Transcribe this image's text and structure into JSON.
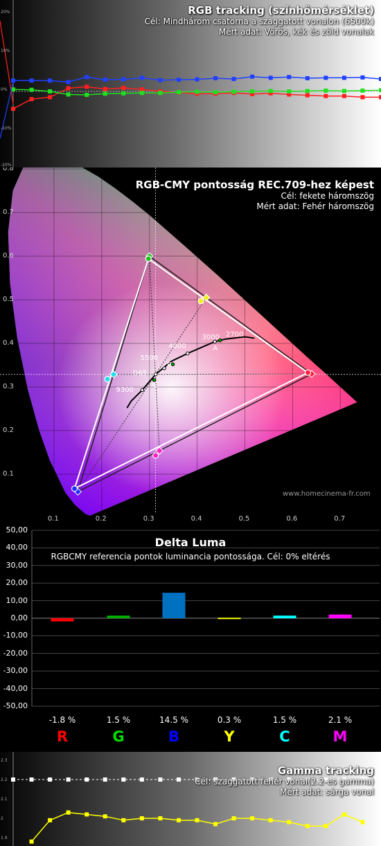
{
  "rgb_tracking": {
    "title": "RGB tracking (színhőmérséklet)",
    "target": "Cél: Mindhárom csatorna a szaggatott vonalon (6500k)",
    "measured": "Mért adat: Vörös, kék és zöld vonalak",
    "y_labels": [
      "20%",
      "10%",
      "0%",
      "-10%",
      "-20%"
    ],
    "colors": {
      "red": "#ff2020",
      "green": "#20e020",
      "blue": "#2040ff"
    }
  },
  "cie": {
    "title": "RGB-CMY pontosság REC.709-hez képest",
    "target": "Cél: fekete háromszög",
    "measured": "Mért adat: Fehér háromszög",
    "x_ticks": [
      "0.1",
      "0.2",
      "0.3",
      "0.4",
      "0.5",
      "0.6",
      "0.7"
    ],
    "y_ticks": [
      "0.8",
      "0.7",
      "0.6",
      "0.5",
      "0.4",
      "0.3",
      "0.2",
      "0.1"
    ],
    "cct_labels": [
      "2700",
      "3000",
      "4000",
      "5500",
      "D65",
      "9300"
    ],
    "illuminant_labels": [
      "A",
      "B",
      "C"
    ],
    "watermark": "www.homecinema-fr.com"
  },
  "delta_luma": {
    "title": "Delta Luma",
    "subtitle": "RGBCMY referencia pontok luminancia pontossága. Cél: 0% eltérés",
    "y_ticks": [
      "50,00",
      "40,00",
      "30,00",
      "20,00",
      "10,00",
      "0,00",
      "-10,00",
      "-20,00",
      "-30,00",
      "-40,00",
      "-50,00"
    ]
  },
  "gamma_tracking": {
    "title": "Gamma tracking",
    "target": "Cél: szaggatott fehér vonal(2.2-es gamma)",
    "measured": "Mért adat: sárga vonal",
    "y_labels": [
      "2.3",
      "2.2",
      "2.1",
      "2",
      "1.9"
    ]
  },
  "chart_data": [
    {
      "type": "line",
      "title": "RGB tracking (színhőmérséklet)",
      "x": [
        0,
        5,
        10,
        15,
        20,
        25,
        30,
        35,
        40,
        45,
        50,
        55,
        60,
        65,
        70,
        75,
        80,
        85,
        90,
        95,
        100
      ],
      "ylim": [
        -20,
        20
      ],
      "target": 0,
      "series": [
        {
          "name": "Vörös",
          "color": "#ff2020",
          "values": [
            -4.5,
            -2.0,
            -1.5,
            0.8,
            1.2,
            0.6,
            0.9,
            0.5,
            0.0,
            -0.3,
            -0.6,
            -0.6,
            -0.4,
            -0.7,
            -0.5,
            -0.8,
            -1.0,
            -1.2,
            -1.2,
            -1.5,
            -1.5
          ]
        },
        {
          "name": "Zöld",
          "color": "#20e020",
          "values": [
            0.5,
            0.4,
            0.0,
            -0.8,
            -0.9,
            -0.6,
            -0.5,
            -0.4,
            -0.4,
            -0.2,
            -0.1,
            -0.2,
            -0.1,
            0.0,
            0.1,
            0.0,
            0.1,
            0.2,
            0.1,
            0.2,
            0.3
          ]
        },
        {
          "name": "Kék",
          "color": "#2040ff",
          "values": [
            2.8,
            2.8,
            2.8,
            2.4,
            3.7,
            3.0,
            3.1,
            3.5,
            2.9,
            3.0,
            3.1,
            3.4,
            3.2,
            3.8,
            3.5,
            3.7,
            3.4,
            3.5,
            3.5,
            3.6,
            3.2
          ]
        }
      ]
    },
    {
      "type": "scatter",
      "title": "RGB-CMY pontosság REC.709-hez képest",
      "xlim": [
        0,
        0.8
      ],
      "ylim": [
        0,
        0.85
      ],
      "target_triangle": [
        [
          0.64,
          0.33
        ],
        [
          0.3,
          0.6
        ],
        [
          0.15,
          0.06
        ]
      ],
      "target_points": {
        "R": [
          0.64,
          0.33
        ],
        "G": [
          0.3,
          0.6
        ],
        "B": [
          0.15,
          0.06
        ],
        "C": [
          0.225,
          0.329
        ],
        "M": [
          0.321,
          0.154
        ],
        "Y": [
          0.419,
          0.505
        ]
      },
      "measured_triangle": [
        [
          0.632,
          0.333
        ],
        [
          0.298,
          0.594
        ],
        [
          0.143,
          0.067
        ]
      ],
      "measured_points": {
        "R": [
          0.632,
          0.333
        ],
        "G": [
          0.298,
          0.594
        ],
        "B": [
          0.143,
          0.067
        ],
        "C": [
          0.212,
          0.318
        ],
        "M": [
          0.313,
          0.143
        ],
        "Y": [
          0.408,
          0.497
        ]
      },
      "white_point": [
        0.3127,
        0.329
      ]
    },
    {
      "type": "bar",
      "title": "Delta Luma",
      "categories": [
        "R",
        "G",
        "B",
        "Y",
        "C",
        "M"
      ],
      "values": [
        -1.8,
        1.5,
        14.5,
        0.3,
        1.5,
        2.1
      ],
      "value_labels": [
        "-1.8 %",
        "1.5 %",
        "14.5 %",
        "0.3 %",
        "1.5 %",
        "2.1 %"
      ],
      "colors": [
        "#ff0000",
        "#00b000",
        "#0070c0",
        "#ffff00",
        "#00ffff",
        "#ff00ff"
      ],
      "category_colors": [
        "#ff0000",
        "#00e000",
        "#0000ff",
        "#ffff00",
        "#00ffff",
        "#ff00ff"
      ],
      "ylim": [
        -50,
        50
      ]
    },
    {
      "type": "line",
      "title": "Gamma tracking",
      "ylim": [
        1.9,
        2.3
      ],
      "target": 2.2,
      "x": [
        5,
        10,
        15,
        20,
        25,
        30,
        35,
        40,
        45,
        50,
        55,
        60,
        65,
        70,
        75,
        80,
        85,
        90,
        95
      ],
      "series": [
        {
          "name": "sárga",
          "color": "#ffff00",
          "values": [
            1.88,
            1.99,
            2.03,
            2.02,
            2.01,
            1.99,
            2.0,
            2.0,
            1.99,
            1.99,
            1.97,
            2.0,
            2.0,
            1.99,
            1.98,
            1.96,
            1.96,
            2.02,
            1.98
          ]
        }
      ]
    }
  ]
}
